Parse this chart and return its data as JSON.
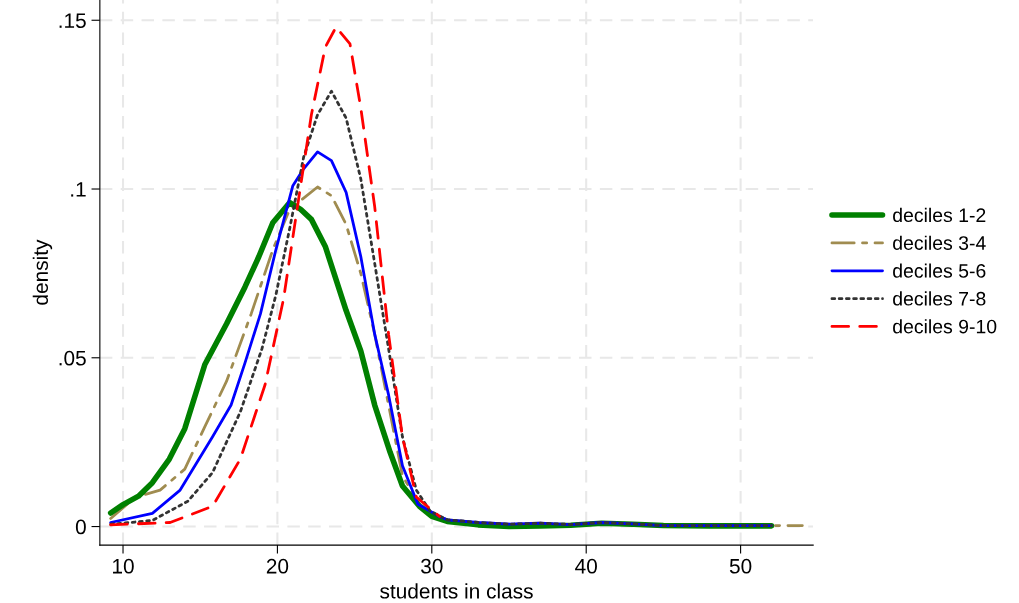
{
  "chart_data": {
    "type": "line",
    "xlabel": "students in class",
    "ylabel": "density",
    "xlim": [
      8.5,
      54.7
    ],
    "ylim": [
      -0.0055,
      0.156
    ],
    "xticks": [
      10,
      20,
      30,
      40,
      50
    ],
    "yticks": [
      {
        "value": 0,
        "label": "0"
      },
      {
        "value": 0.05,
        "label": ".05"
      },
      {
        "value": 0.1,
        "label": ".1"
      },
      {
        "value": 0.15,
        "label": ".15"
      }
    ],
    "grid": true,
    "legend": "right",
    "marker": "none",
    "series": [
      {
        "name": "deciles 1-2",
        "color": "#008000",
        "line_style": "solid",
        "x": [
          9.2,
          10,
          11,
          11.9,
          13,
          14,
          15.3,
          16.7,
          17.9,
          18.8,
          19.7,
          20.8,
          21.5,
          22.2,
          23.1,
          24.45,
          25.4,
          26.3,
          27.3,
          28.1,
          29.2,
          30,
          31,
          33,
          35,
          37,
          39,
          41,
          43,
          45,
          48,
          52
        ],
        "values": [
          0.004,
          0.0065,
          0.009,
          0.013,
          0.02,
          0.029,
          0.048,
          0.06,
          0.071,
          0.08,
          0.09,
          0.096,
          0.094,
          0.091,
          0.083,
          0.064,
          0.052,
          0.036,
          0.022,
          0.012,
          0.006,
          0.003,
          0.0015,
          0.0005,
          0.0,
          0.0002,
          0.0004,
          0.001,
          0.0007,
          0.0003,
          0.0002,
          0.0002
        ]
      },
      {
        "name": "deciles 3-4",
        "color": "#a08c50",
        "line_style": "dashdot",
        "x": [
          9.2,
          10.8,
          12.4,
          14,
          15.3,
          16.7,
          18.3,
          19.7,
          20.8,
          22.6,
          23.5,
          24.45,
          25.4,
          26.3,
          27.2,
          28.1,
          29.2,
          30.5,
          31,
          33,
          35,
          37,
          39,
          41,
          43,
          45,
          48,
          51,
          54
        ],
        "values": [
          0.0024,
          0.0087,
          0.0108,
          0.017,
          0.0296,
          0.043,
          0.063,
          0.082,
          0.094,
          0.1006,
          0.098,
          0.0895,
          0.075,
          0.057,
          0.036,
          0.015,
          0.0066,
          0.003,
          0.002,
          0.0012,
          0.0007,
          0.001,
          0.0006,
          0.0012,
          0.0008,
          0.0003,
          0.0003,
          0.0003,
          0.0003
        ]
      },
      {
        "name": "deciles 5-6",
        "color": "#0000ff",
        "line_style": "solid",
        "x": [
          9.2,
          11.9,
          13.7,
          15.8,
          17,
          17.9,
          18.9,
          19.9,
          21,
          21.7,
          22.6,
          23.5,
          24.45,
          25.4,
          26.3,
          27.2,
          28.1,
          29.1,
          30.5,
          31,
          33,
          35,
          37,
          39,
          41,
          43,
          45,
          48,
          52
        ],
        "values": [
          0.0012,
          0.0039,
          0.0108,
          0.0266,
          0.036,
          0.0485,
          0.063,
          0.082,
          0.101,
          0.106,
          0.111,
          0.1084,
          0.099,
          0.08,
          0.057,
          0.039,
          0.018,
          0.0066,
          0.003,
          0.002,
          0.0012,
          0.0007,
          0.001,
          0.0006,
          0.0012,
          0.0008,
          0.0003,
          0.0003,
          0.0003
        ]
      },
      {
        "name": "deciles 7-8",
        "color": "#333333",
        "line_style": "dotted",
        "x": [
          9.2,
          11.9,
          14.2,
          15.8,
          17.6,
          19,
          19.9,
          20.8,
          21.7,
          22.6,
          23.5,
          24.45,
          25.4,
          26.3,
          27.2,
          28.1,
          29,
          29.9,
          31,
          33,
          35,
          37,
          39,
          41,
          43,
          45,
          48,
          52
        ],
        "values": [
          0.0007,
          0.0018,
          0.0075,
          0.016,
          0.034,
          0.0527,
          0.0686,
          0.0884,
          0.1095,
          0.122,
          0.129,
          0.121,
          0.103,
          0.078,
          0.0527,
          0.0265,
          0.0108,
          0.0045,
          0.002,
          0.0012,
          0.0007,
          0.001,
          0.0006,
          0.0012,
          0.0008,
          0.0003,
          0.0003,
          0.0003
        ]
      },
      {
        "name": "deciles 9-10",
        "color": "#ff0000",
        "line_style": "dashed",
        "x": [
          9.2,
          13.05,
          15.8,
          17.6,
          19.2,
          20.4,
          21.3,
          22.2,
          23.1,
          23.8,
          24.7,
          25.4,
          26.3,
          27.2,
          28.1,
          29,
          30.5
        ],
        "values": [
          0.0005,
          0.0012,
          0.006,
          0.02,
          0.042,
          0.0675,
          0.0948,
          0.122,
          0.142,
          0.148,
          0.143,
          0.124,
          0.0948,
          0.057,
          0.0265,
          0.0087,
          0.003
        ]
      }
    ]
  }
}
